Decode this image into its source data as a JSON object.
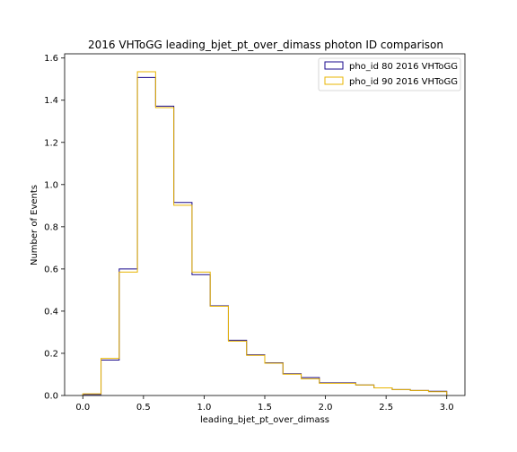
{
  "chart_data": {
    "type": "line",
    "title": "2016 VHToGG leading_bjet_pt_over_dimass photon ID comparison",
    "xlabel": "leading_bjet_pt_over_dimass",
    "ylabel": "Number of Events",
    "xlim": [
      -0.15,
      3.15
    ],
    "ylim": [
      0,
      1.62
    ],
    "x_ticks": [
      "0.0",
      "0.5",
      "1.0",
      "1.5",
      "2.0",
      "2.5",
      "3.0"
    ],
    "y_ticks": [
      "0.0",
      "0.2",
      "0.4",
      "0.6",
      "0.8",
      "1.0",
      "1.2",
      "1.4",
      "1.6"
    ],
    "bin_edges": [
      0.0,
      0.15,
      0.3,
      0.45,
      0.6,
      0.75,
      0.9,
      1.05,
      1.2,
      1.35,
      1.5,
      1.65,
      1.8,
      1.95,
      2.1,
      2.25,
      2.4,
      2.55,
      2.7,
      2.85,
      3.0
    ],
    "legend_position": "top-right",
    "grid": false,
    "series": [
      {
        "name": "pho_id 80 2016 VHToGG",
        "color": "#1a0a8c",
        "values": [
          0.005,
          0.168,
          0.6,
          1.508,
          1.372,
          0.915,
          0.573,
          0.425,
          0.262,
          0.193,
          0.155,
          0.103,
          0.085,
          0.06,
          0.06,
          0.05,
          0.036,
          0.028,
          0.024,
          0.02
        ]
      },
      {
        "name": "pho_id 90 2016 VHToGG",
        "color": "#e8b400",
        "values": [
          0.008,
          0.176,
          0.585,
          1.535,
          1.365,
          0.902,
          0.585,
          0.423,
          0.258,
          0.19,
          0.153,
          0.101,
          0.079,
          0.058,
          0.058,
          0.05,
          0.036,
          0.028,
          0.024,
          0.018
        ]
      }
    ]
  }
}
